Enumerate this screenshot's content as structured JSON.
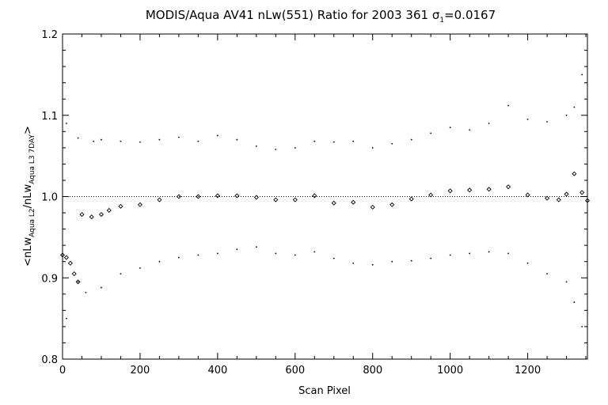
{
  "chart_data": {
    "type": "scatter",
    "title": {
      "prefix": "MODIS/Aqua AV41 nLw(551) Ratio for 2003 361 ",
      "sigma_symbol": "σ",
      "sigma_subscript": "1",
      "sigma_value": "=0.0167"
    },
    "xlabel": "Scan Pixel",
    "ylabel": {
      "open": "<nLw",
      "sub1": "Aqua L2",
      "mid": "/nLw",
      "sub2": "Aqua L3 7DAY",
      "close": ">"
    },
    "xlim": [
      0,
      1354
    ],
    "ylim": [
      0.8,
      1.2
    ],
    "x_ticks": [
      0,
      200,
      400,
      600,
      800,
      1000,
      1200
    ],
    "x_tick_labels": [
      "0",
      "200",
      "400",
      "600",
      "800",
      "1000",
      "1200"
    ],
    "y_ticks": [
      0.8,
      0.9,
      1.0,
      1.1,
      1.2
    ],
    "y_tick_labels": [
      "0.8",
      "0.9",
      "1.0",
      "1.1",
      "1.2"
    ],
    "reference_line": 1.0,
    "series": [
      {
        "role": "mean-ratio",
        "marker": "diamond",
        "points": [
          [
            0,
            0.928
          ],
          [
            10,
            0.925
          ],
          [
            20,
            0.918
          ],
          [
            30,
            0.905
          ],
          [
            40,
            0.895
          ],
          [
            50,
            0.978
          ],
          [
            75,
            0.975
          ],
          [
            100,
            0.978
          ],
          [
            120,
            0.983
          ],
          [
            150,
            0.988
          ],
          [
            200,
            0.99
          ],
          [
            250,
            0.996
          ],
          [
            300,
            1.0
          ],
          [
            350,
            1.0
          ],
          [
            400,
            1.001
          ],
          [
            450,
            1.001
          ],
          [
            500,
            0.999
          ],
          [
            550,
            0.996
          ],
          [
            600,
            0.996
          ],
          [
            650,
            1.001
          ],
          [
            700,
            0.992
          ],
          [
            750,
            0.993
          ],
          [
            800,
            0.987
          ],
          [
            850,
            0.99
          ],
          [
            900,
            0.997
          ],
          [
            950,
            1.002
          ],
          [
            1000,
            1.007
          ],
          [
            1050,
            1.008
          ],
          [
            1100,
            1.009
          ],
          [
            1150,
            1.012
          ],
          [
            1200,
            1.002
          ],
          [
            1250,
            0.998
          ],
          [
            1280,
            0.996
          ],
          [
            1300,
            1.003
          ],
          [
            1320,
            1.028
          ],
          [
            1340,
            1.005
          ],
          [
            1354,
            0.995
          ]
        ]
      },
      {
        "role": "upper-band",
        "marker": "dot",
        "points": [
          [
            10,
            1.09
          ],
          [
            40,
            1.072
          ],
          [
            80,
            1.068
          ],
          [
            100,
            1.07
          ],
          [
            150,
            1.068
          ],
          [
            200,
            1.067
          ],
          [
            250,
            1.07
          ],
          [
            300,
            1.073
          ],
          [
            350,
            1.068
          ],
          [
            400,
            1.075
          ],
          [
            450,
            1.07
          ],
          [
            500,
            1.062
          ],
          [
            550,
            1.058
          ],
          [
            600,
            1.06
          ],
          [
            650,
            1.068
          ],
          [
            700,
            1.067
          ],
          [
            750,
            1.068
          ],
          [
            800,
            1.06
          ],
          [
            850,
            1.065
          ],
          [
            900,
            1.07
          ],
          [
            950,
            1.078
          ],
          [
            1000,
            1.085
          ],
          [
            1050,
            1.082
          ],
          [
            1100,
            1.09
          ],
          [
            1150,
            1.112
          ],
          [
            1200,
            1.095
          ],
          [
            1250,
            1.092
          ],
          [
            1300,
            1.1
          ],
          [
            1320,
            1.11
          ],
          [
            1340,
            1.15
          ]
        ]
      },
      {
        "role": "lower-band",
        "marker": "dot",
        "points": [
          [
            10,
            0.85
          ],
          [
            40,
            0.895
          ],
          [
            60,
            0.882
          ],
          [
            100,
            0.888
          ],
          [
            150,
            0.905
          ],
          [
            200,
            0.912
          ],
          [
            250,
            0.92
          ],
          [
            300,
            0.925
          ],
          [
            350,
            0.928
          ],
          [
            400,
            0.93
          ],
          [
            450,
            0.935
          ],
          [
            500,
            0.938
          ],
          [
            550,
            0.93
          ],
          [
            600,
            0.928
          ],
          [
            650,
            0.932
          ],
          [
            700,
            0.924
          ],
          [
            750,
            0.918
          ],
          [
            800,
            0.916
          ],
          [
            850,
            0.92
          ],
          [
            900,
            0.921
          ],
          [
            950,
            0.924
          ],
          [
            1000,
            0.928
          ],
          [
            1050,
            0.93
          ],
          [
            1100,
            0.932
          ],
          [
            1150,
            0.93
          ],
          [
            1200,
            0.918
          ],
          [
            1250,
            0.905
          ],
          [
            1300,
            0.895
          ],
          [
            1320,
            0.87
          ],
          [
            1340,
            0.84
          ]
        ]
      }
    ]
  }
}
